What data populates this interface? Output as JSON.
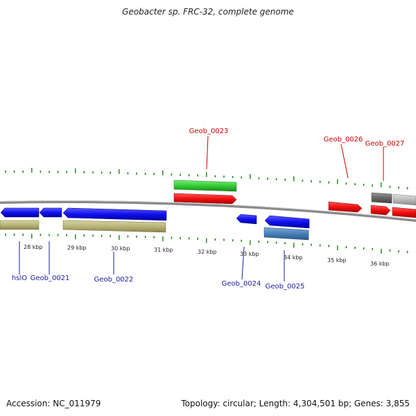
{
  "title": "Geobacter sp. FRC-32, complete genome",
  "footer": {
    "accession": "Accession: NC_011979",
    "summary": "Topology: circular; Length: 4,304,501 bp; Genes: 3,855"
  },
  "kbp_labels": [
    "28 kbp",
    "29 kbp",
    "30 kbp",
    "31 kbp",
    "32 kbp",
    "33 kbp",
    "34 kbp",
    "35 kbp",
    "36 kbp"
  ],
  "top_genes": [
    {
      "label": "Geob_0023"
    },
    {
      "label": "Geob_0026"
    },
    {
      "label": "Geob_0027"
    }
  ],
  "bottom_genes": [
    {
      "label": "hslO"
    },
    {
      "label": "Geob_0021"
    },
    {
      "label": "Geob_0022"
    },
    {
      "label": "Geob_0024"
    },
    {
      "label": "Geob_0025"
    }
  ],
  "colors": {
    "forward_cds": "#ee1111",
    "reverse_cds": "#1111ee",
    "rna_track": "#33cc33",
    "misc_track": "#b8b47a",
    "dark_gray": "#666666",
    "light_gray": "#bbbbbb",
    "steel": "#4a80b8",
    "tick_green": "#118811",
    "backbone": "#888888"
  }
}
